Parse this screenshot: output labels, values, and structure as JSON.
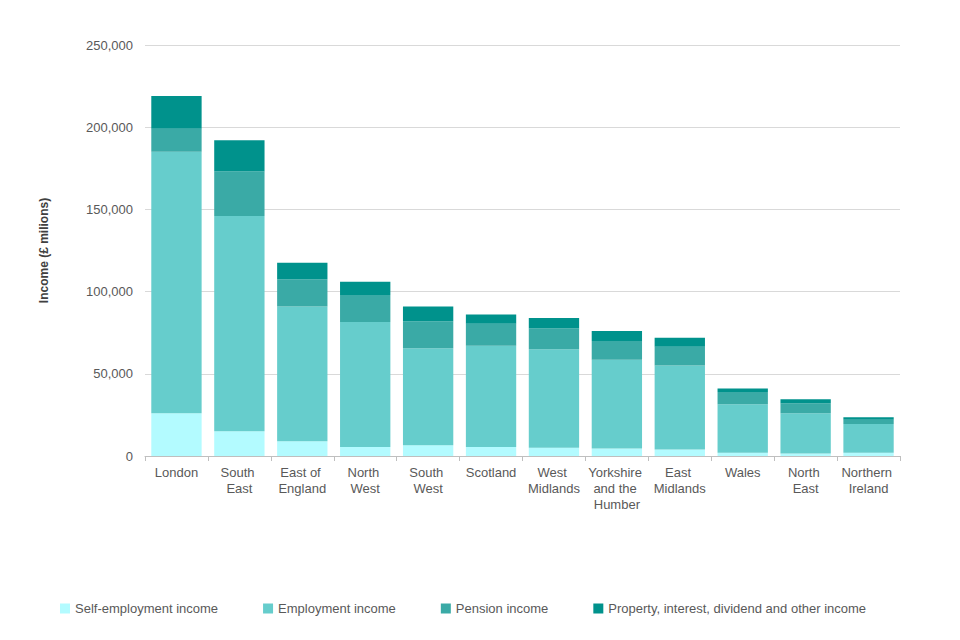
{
  "chart_data": {
    "type": "bar",
    "stacked": true,
    "y_label": "Income (£ milions)",
    "categories": [
      "London",
      "South East",
      "East of England",
      "North West",
      "South West",
      "Scotland",
      "West Midlands",
      "Yorkshire and the Humber",
      "East Midlands",
      "Wales",
      "North East",
      "Northern Ireland"
    ],
    "series": [
      {
        "name": "Self-employment income",
        "color": "#b3fbff",
        "values": [
          26000,
          15000,
          9000,
          5500,
          6500,
          5500,
          5000,
          4500,
          4000,
          2000,
          1500,
          2000
        ]
      },
      {
        "name": "Employment income",
        "color": "#66cdcc",
        "values": [
          159000,
          131000,
          82000,
          76000,
          59000,
          61500,
          60000,
          54000,
          51000,
          29500,
          24500,
          17500
        ]
      },
      {
        "name": "Pension income",
        "color": "#3aaaa6",
        "values": [
          14000,
          27000,
          16500,
          16500,
          16500,
          13500,
          12500,
          11500,
          11500,
          7500,
          6000,
          2500
        ]
      },
      {
        "name": "Property, interest, dividend and other income",
        "color": "#00928c",
        "values": [
          20000,
          19000,
          10000,
          8000,
          9000,
          5500,
          6500,
          6000,
          5500,
          2000,
          2500,
          1500
        ]
      }
    ],
    "ylim": [
      0,
      250000
    ],
    "yticks": [
      0,
      {
        "value": 50000,
        "label": "50,000"
      },
      {
        "value": 100000,
        "label": "100,000"
      },
      {
        "value": 150000,
        "label": "150,000"
      },
      {
        "value": 200000,
        "label": "200,000"
      },
      {
        "value": 250000,
        "label": "250,000"
      }
    ],
    "grid": true,
    "legend": "bottom"
  }
}
